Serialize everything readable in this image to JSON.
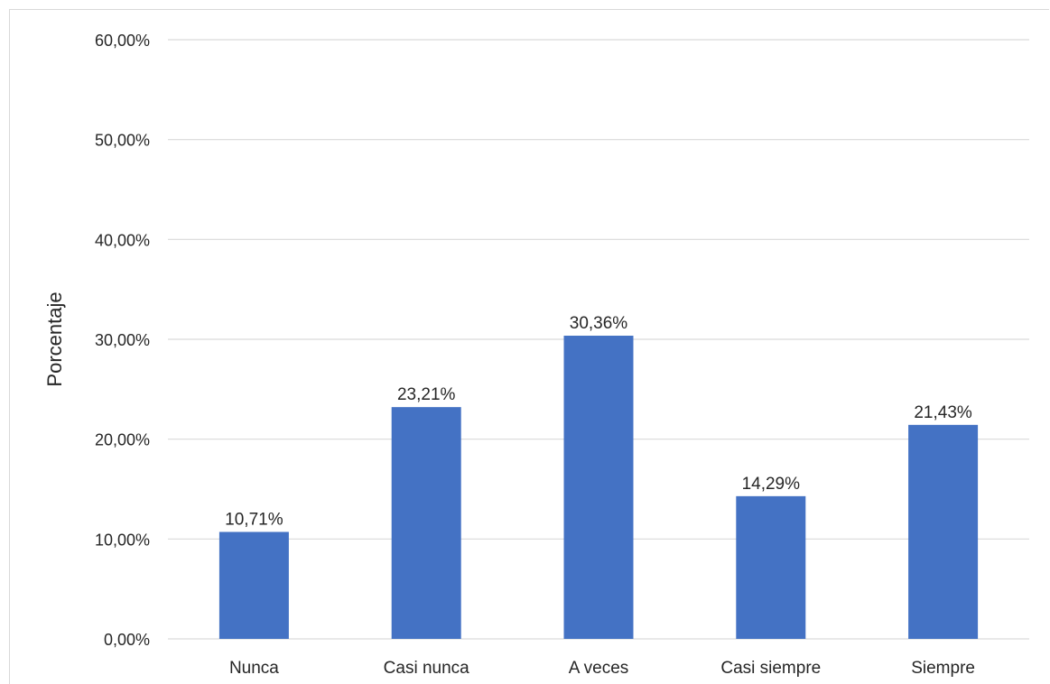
{
  "chart_data": {
    "type": "bar",
    "categories": [
      "Nunca",
      "Casi nunca",
      "A veces",
      "Casi siempre",
      "Siempre"
    ],
    "values": [
      10.71,
      23.21,
      30.36,
      14.29,
      21.43
    ],
    "data_labels": [
      "10,71%",
      "23,21%",
      "30,36%",
      "14,29%",
      "21,43%"
    ],
    "ylabel": "Porcentaje",
    "xlabel": "",
    "ylim": [
      0,
      60
    ],
    "yticks": [
      0,
      10,
      20,
      30,
      40,
      50,
      60
    ],
    "ytick_labels": [
      "0,00%",
      "10,00%",
      "20,00%",
      "30,00%",
      "40,00%",
      "50,00%",
      "60,00%"
    ],
    "grid": true,
    "legend": "none",
    "bar_color": "#4472c4"
  }
}
